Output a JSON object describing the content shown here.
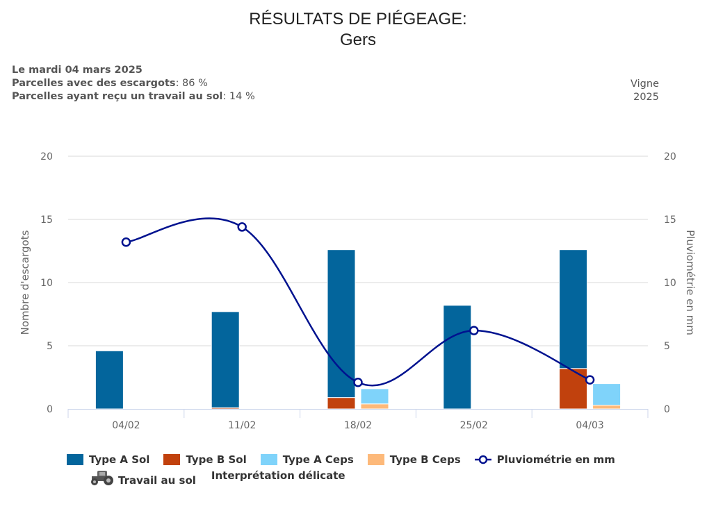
{
  "header": {
    "title": "RÉSULTATS DE PIÉGEAGE:",
    "subtitle": "Gers"
  },
  "info": {
    "date": "Le mardi 04 mars 2025",
    "parcelles_escargots_label": "Parcelles avec des escargots",
    "parcelles_escargots_value": ": 86 %",
    "parcelles_travail_label": "Parcelles ayant reçu un travail au sol",
    "parcelles_travail_value": ": 14 %",
    "culture": "Vigne",
    "annee": "2025"
  },
  "colors": {
    "type_a_sol": "#03659c",
    "type_b_sol": "#c1410d",
    "type_a_ceps": "#7fd3fa",
    "type_b_ceps": "#fdb97a",
    "pluvio": "#00128f"
  },
  "chart_data": {
    "type": "bar",
    "title": "RÉSULTATS DE PIÉGEAGE: Gers",
    "categories": [
      "04/02",
      "11/02",
      "18/02",
      "25/02",
      "04/03"
    ],
    "ylabel": "Nombre d'escargots",
    "y2label": "Pluviométrie en mm",
    "ylim": [
      0,
      20
    ],
    "y2lim": [
      0,
      20
    ],
    "yticks": [
      "0",
      "5",
      "10",
      "15",
      "20"
    ],
    "y2ticks": [
      "0",
      "5",
      "10",
      "15",
      "20"
    ],
    "grid": true,
    "series": [
      {
        "name": "Type A Sol",
        "stack": "sol",
        "values": [
          4.6,
          7.6,
          11.7,
          8.2,
          9.4
        ]
      },
      {
        "name": "Type B Sol",
        "stack": "sol",
        "values": [
          0,
          0.1,
          0.9,
          0,
          3.2
        ]
      },
      {
        "name": "Type A Ceps",
        "stack": "ceps",
        "values": [
          0,
          0,
          1.2,
          0,
          1.7
        ]
      },
      {
        "name": "Type B Ceps",
        "stack": "ceps",
        "values": [
          0,
          0,
          0.4,
          0,
          0.3
        ]
      },
      {
        "name": "Pluviométrie en mm",
        "type": "spline",
        "axis": "right",
        "values": [
          13.2,
          14.4,
          2.1,
          6.2,
          2.3
        ]
      }
    ],
    "legend": {
      "position": "bottom",
      "items": [
        "Type A Sol",
        "Type B Sol",
        "Type A Ceps",
        "Type B Ceps",
        "Pluviométrie en mm"
      ],
      "extra": [
        "Travail au sol",
        "Interprétation délicate"
      ]
    }
  }
}
